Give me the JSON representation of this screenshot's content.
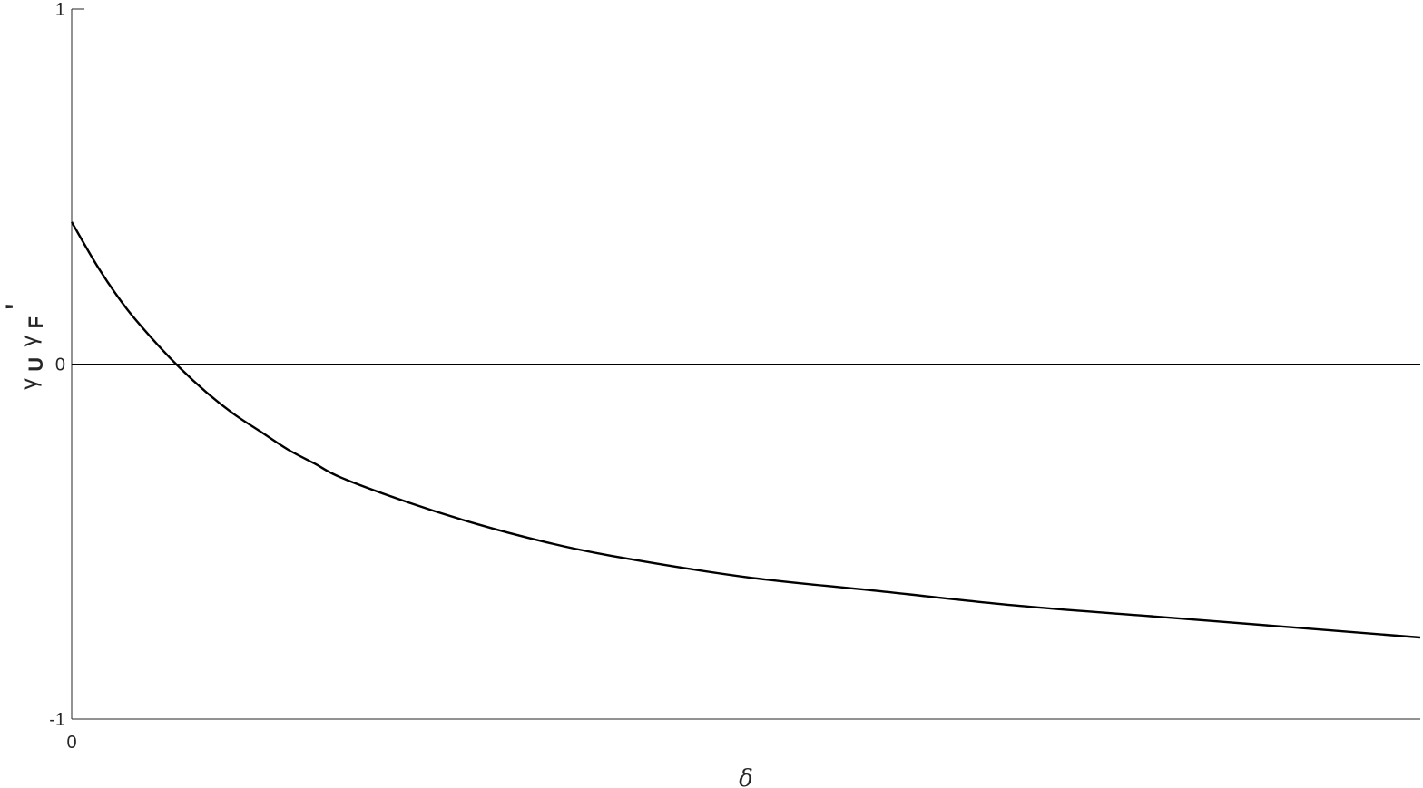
{
  "chart_data": {
    "type": "line",
    "title": "",
    "xlabel": "δ",
    "ylabel": "γU γF'",
    "ylabel_parts": {
      "g1": "γ",
      "s1": "U",
      "g2": "γ",
      "s2": "F",
      "prime": "'"
    },
    "xlim": [
      0,
      1
    ],
    "ylim": [
      -1,
      1
    ],
    "x_ticks": [
      {
        "value": 0,
        "label": "0"
      }
    ],
    "y_ticks": [
      {
        "value": 1,
        "label": "1"
      },
      {
        "value": 0,
        "label": "0"
      },
      {
        "value": -1,
        "label": "-1"
      }
    ],
    "grid": false,
    "reference_line": {
      "y": 0
    },
    "series": [
      {
        "color": "#000000",
        "x": [
          0,
          0.02,
          0.04,
          0.06,
          0.08,
          0.1,
          0.12,
          0.14,
          0.16,
          0.18,
          0.2,
          0.25,
          0.3,
          0.35,
          0.4,
          0.5,
          0.6,
          0.7,
          0.8,
          0.9,
          1.0
        ],
        "y": [
          0.4,
          0.27,
          0.16,
          0.07,
          -0.01,
          -0.08,
          -0.14,
          -0.19,
          -0.24,
          -0.28,
          -0.32,
          -0.39,
          -0.45,
          -0.5,
          -0.54,
          -0.6,
          -0.64,
          -0.68,
          -0.71,
          -0.74,
          -0.77
        ]
      }
    ]
  }
}
